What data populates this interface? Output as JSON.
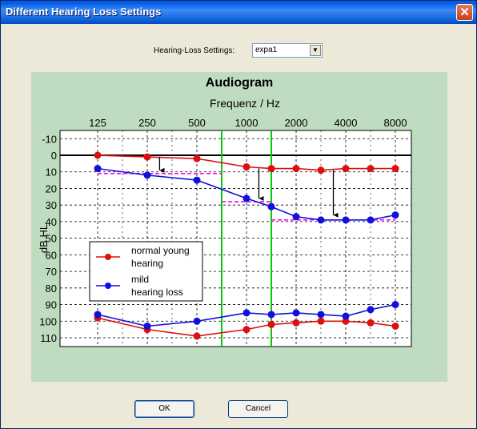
{
  "window": {
    "title": "Different Hearing Loss Settings",
    "close_symbol": "✕"
  },
  "settings": {
    "label": "Hearing-Loss Settings:",
    "selected": "expa1",
    "arrow_symbol": "▼"
  },
  "buttons": {
    "ok": "OK",
    "cancel": "Cancel"
  },
  "colors": {
    "normal": "#dd1010",
    "mild": "#1010dd",
    "markers": "#00cc00",
    "targets": "#ff00ff",
    "panel": "#c0dcc0"
  },
  "chart_data": {
    "type": "line",
    "title": "Audiogram",
    "xlabel": "Frequenz / Hz",
    "ylabel": "dB HL",
    "x_log2_scale": true,
    "x_ticks": [
      125,
      250,
      500,
      1000,
      2000,
      4000,
      8000
    ],
    "x_tick_labels": [
      "125",
      "250",
      "500",
      "1000",
      "2000",
      "4000",
      "8000"
    ],
    "ylim": [
      -15,
      115
    ],
    "y_inverted": true,
    "y_ticks": [
      -10,
      0,
      10,
      20,
      30,
      40,
      50,
      60,
      70,
      80,
      90,
      100,
      110
    ],
    "y_tick_labels": [
      "-10",
      "0",
      "10",
      "20",
      "30",
      "40",
      "50",
      "60",
      "70",
      "80",
      "90",
      "100",
      "110"
    ],
    "grid": true,
    "series": [
      {
        "name": "normal young\nhearing",
        "legend_lines": [
          "normal young",
          "hearing"
        ],
        "color": "#dd1010",
        "upper_x": [
          125,
          250,
          500,
          1000,
          1414,
          2000,
          2828,
          4000,
          5657,
          8000
        ],
        "upper_y": [
          0,
          1,
          2,
          7,
          8,
          8,
          9,
          8,
          8,
          8
        ],
        "lower_x": [
          125,
          250,
          500,
          1000,
          1414,
          2000,
          2828,
          4000,
          5657,
          8000
        ],
        "lower_y": [
          98,
          105,
          109,
          105,
          102,
          101,
          100,
          100,
          101,
          103
        ]
      },
      {
        "name": "mild\nhearing loss",
        "legend_lines": [
          "mild",
          "hearing loss"
        ],
        "color": "#1010dd",
        "upper_x": [
          125,
          250,
          500,
          1000,
          1414,
          2000,
          2828,
          4000,
          5657,
          8000
        ],
        "upper_y": [
          8,
          12,
          15,
          26,
          31,
          37,
          39,
          39,
          39,
          36
        ],
        "lower_x": [
          125,
          250,
          500,
          1000,
          1414,
          2000,
          2828,
          4000,
          5657,
          8000
        ],
        "lower_y": [
          96,
          103,
          100,
          95,
          96,
          95,
          96,
          97,
          93,
          90
        ]
      }
    ],
    "vertical_markers_hz": [
      707,
      1414
    ],
    "band_targets": [
      {
        "x": [
          125,
          707
        ],
        "y": 11
      },
      {
        "x": [
          707,
          1414
        ],
        "y": 28
      },
      {
        "x": [
          1414,
          8000
        ],
        "y": 39
      }
    ],
    "arrows": [
      {
        "x": 297,
        "from": 1,
        "to": 11
      },
      {
        "x": 1189,
        "from": 8,
        "to": 28
      },
      {
        "x": 3364,
        "from": 9,
        "to": 38
      }
    ]
  }
}
